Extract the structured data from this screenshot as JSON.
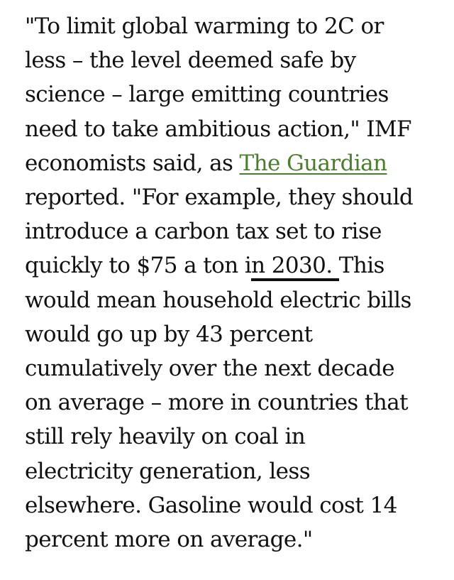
{
  "article": {
    "line_01": "\"To limit global warming to 2C or",
    "line_02": "less – the level deemed safe by",
    "line_03": "science – large emitting countries",
    "line_04": "need to take ambitious action,\" IMF",
    "line_05_before": "economists said, as ",
    "line_05_link": "The Guardian",
    "line_06": "reported. \"For example, they should",
    "line_07": "introduce a carbon tax set to rise",
    "line_08_before": "quickly to $75 a ton i",
    "line_08_marked": "n 2030. ",
    "line_08_after": "This",
    "line_09": "would mean household electric bills",
    "line_10": "would go up by 43 percent",
    "line_11": "cumulatively over the next decade",
    "line_12": "on average – more in countries that",
    "line_13": "still rely heavily on coal in",
    "line_14": "electricity generation, less",
    "line_15": "elsewhere. Gasoline would cost 14",
    "line_16": "percent more on average.\""
  },
  "colors": {
    "text": "#111111",
    "link": "#4a7d2e",
    "background": "#ffffff"
  }
}
